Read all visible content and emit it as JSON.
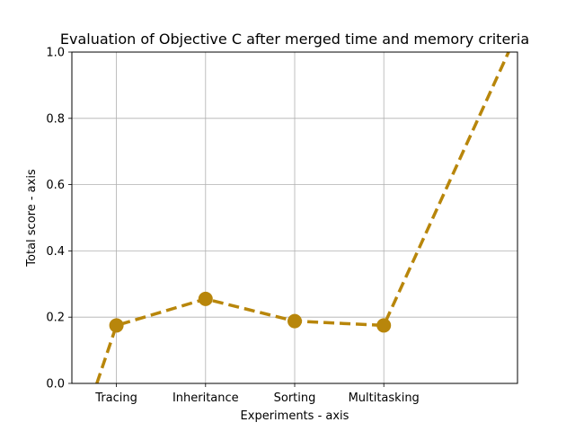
{
  "chart_data": {
    "type": "line",
    "title": "Evaluation of Objective C after merged time and memory criteria",
    "xlabel": "Experiments - axis",
    "ylabel": "Total score - axis",
    "categories": [
      "Tracing",
      "Inheritance",
      "Sorting",
      "Multitasking"
    ],
    "series": [
      {
        "values": [
          0.175,
          0.255,
          0.188,
          0.175
        ],
        "color": "#b8860b",
        "line_style": "dashed",
        "marker": "circle"
      }
    ],
    "extension": {
      "start": {
        "x": -0.22,
        "y": 0.0
      },
      "end": {
        "x": 4.4,
        "y": 1.0
      }
    },
    "xlim": [
      -0.5,
      4.5
    ],
    "ylim": [
      0.0,
      1.0
    ],
    "yticks": [
      "0.0",
      "0.2",
      "0.4",
      "0.6",
      "0.8",
      "1.0"
    ],
    "grid": true
  }
}
